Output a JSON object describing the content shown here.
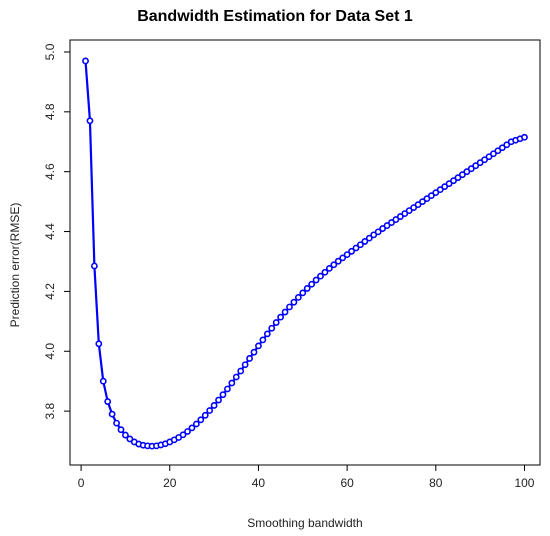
{
  "chart_data": {
    "type": "line",
    "title": "Bandwidth Estimation for Data Set 1",
    "xlabel": "Smoothing bandwidth",
    "ylabel": "Prediction error(RMSE)",
    "xlim": [
      -2.5,
      103.5
    ],
    "ylim": [
      3.62,
      5.04
    ],
    "xticks": [
      0,
      20,
      40,
      60,
      80,
      100
    ],
    "yticks": [
      3.8,
      4.0,
      4.2,
      4.4,
      4.6,
      4.8,
      5.0
    ],
    "ytick_labels": [
      "3.8",
      "4.0",
      "4.2",
      "4.4",
      "4.6",
      "4.8",
      "5.0"
    ],
    "grid": false,
    "legend": "none",
    "series_color": "#0000ff",
    "marker": "open-circle",
    "series": [
      {
        "x": [
          1,
          2,
          3,
          4,
          5,
          6,
          7,
          8,
          9,
          10,
          11,
          12,
          13,
          14,
          15,
          16,
          17,
          18,
          19,
          20,
          21,
          22,
          23,
          24,
          25,
          26,
          27,
          28,
          29,
          30,
          31,
          32,
          33,
          34,
          35,
          36,
          37,
          38,
          39,
          40,
          41,
          42,
          43,
          44,
          45,
          46,
          47,
          48,
          49,
          50,
          51,
          52,
          53,
          54,
          55,
          56,
          57,
          58,
          59,
          60,
          61,
          62,
          63,
          64,
          65,
          66,
          67,
          68,
          69,
          70,
          71,
          72,
          73,
          74,
          75,
          76,
          77,
          78,
          79,
          80,
          81,
          82,
          83,
          84,
          85,
          86,
          87,
          88,
          89,
          90,
          91,
          92,
          93,
          94,
          95,
          96,
          97,
          98,
          99,
          100
        ],
        "y": [
          4.97,
          4.77,
          4.285,
          4.025,
          3.9,
          3.832,
          3.79,
          3.76,
          3.738,
          3.72,
          3.707,
          3.697,
          3.69,
          3.686,
          3.684,
          3.683,
          3.684,
          3.687,
          3.691,
          3.697,
          3.704,
          3.712,
          3.721,
          3.732,
          3.744,
          3.757,
          3.771,
          3.786,
          3.802,
          3.819,
          3.837,
          3.855,
          3.874,
          3.894,
          3.914,
          3.934,
          3.955,
          3.976,
          3.997,
          4.018,
          4.038,
          4.058,
          4.077,
          4.096,
          4.114,
          4.131,
          4.148,
          4.164,
          4.18,
          4.195,
          4.21,
          4.224,
          4.238,
          4.251,
          4.264,
          4.277,
          4.289,
          4.301,
          4.312,
          4.323,
          4.334,
          4.345,
          4.356,
          4.367,
          4.378,
          4.389,
          4.399,
          4.41,
          4.42,
          4.43,
          4.44,
          4.45,
          4.46,
          4.47,
          4.48,
          4.49,
          4.5,
          4.51,
          4.52,
          4.53,
          4.54,
          4.55,
          4.56,
          4.57,
          4.58,
          4.59,
          4.6,
          4.61,
          4.62,
          4.63,
          4.64,
          4.65,
          4.66,
          4.67,
          4.68,
          4.69,
          4.7,
          4.705,
          4.71,
          4.715
        ]
      }
    ]
  }
}
